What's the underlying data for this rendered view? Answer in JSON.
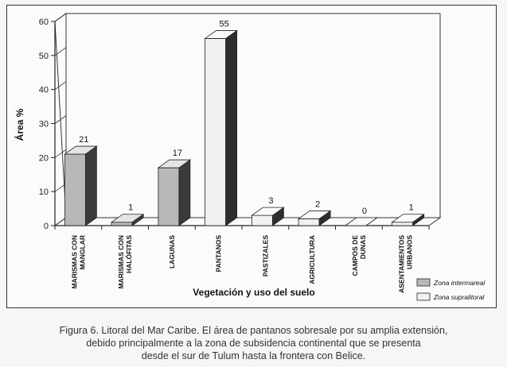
{
  "chart_data": {
    "type": "bar",
    "title": "",
    "xlabel": "Vegetación y uso del suelo",
    "ylabel": "Área %",
    "ylim": [
      0,
      60
    ],
    "yticks": [
      0,
      10,
      20,
      30,
      40,
      50,
      60
    ],
    "categories": [
      [
        "MARISMAS CON",
        "MANGLAR"
      ],
      [
        "MARISMAS CON",
        "HALÓFITAS"
      ],
      [
        "LAGUNAS"
      ],
      [
        "PANTANOS"
      ],
      [
        "PASTIZALES"
      ],
      [
        "AGRICULTURA"
      ],
      [
        "CAMPOS DE",
        "DUNAS"
      ],
      [
        "ASENTAMIENTOS",
        "URBANOS"
      ]
    ],
    "series": [
      {
        "name": "Zona intermareal",
        "values": [
          21,
          1,
          17,
          null,
          null,
          null,
          null,
          null
        ],
        "color": "#b8b8b8",
        "side": "#3a3a3a",
        "top": "#e4e4e4"
      },
      {
        "name": "Zona supralitoral",
        "values": [
          null,
          null,
          null,
          55,
          3,
          2,
          0,
          1
        ],
        "color": "#f1f1f1",
        "side": "#2e2e2e",
        "top": "#fafafa"
      }
    ],
    "value_labels": [
      "21",
      "1",
      "17",
      "55",
      "3",
      "2",
      "0",
      "1"
    ],
    "legend_position": "bottom-right",
    "grid": false
  },
  "caption": {
    "lines": [
      "Figura 6. Litoral del Mar Caribe. El área de pantanos sobresale por su amplia extensión,",
      "debido principalmente a la zona de subsidencia continental que se presenta",
      "desde el sur de Tulum hasta la frontera con Belice."
    ]
  }
}
